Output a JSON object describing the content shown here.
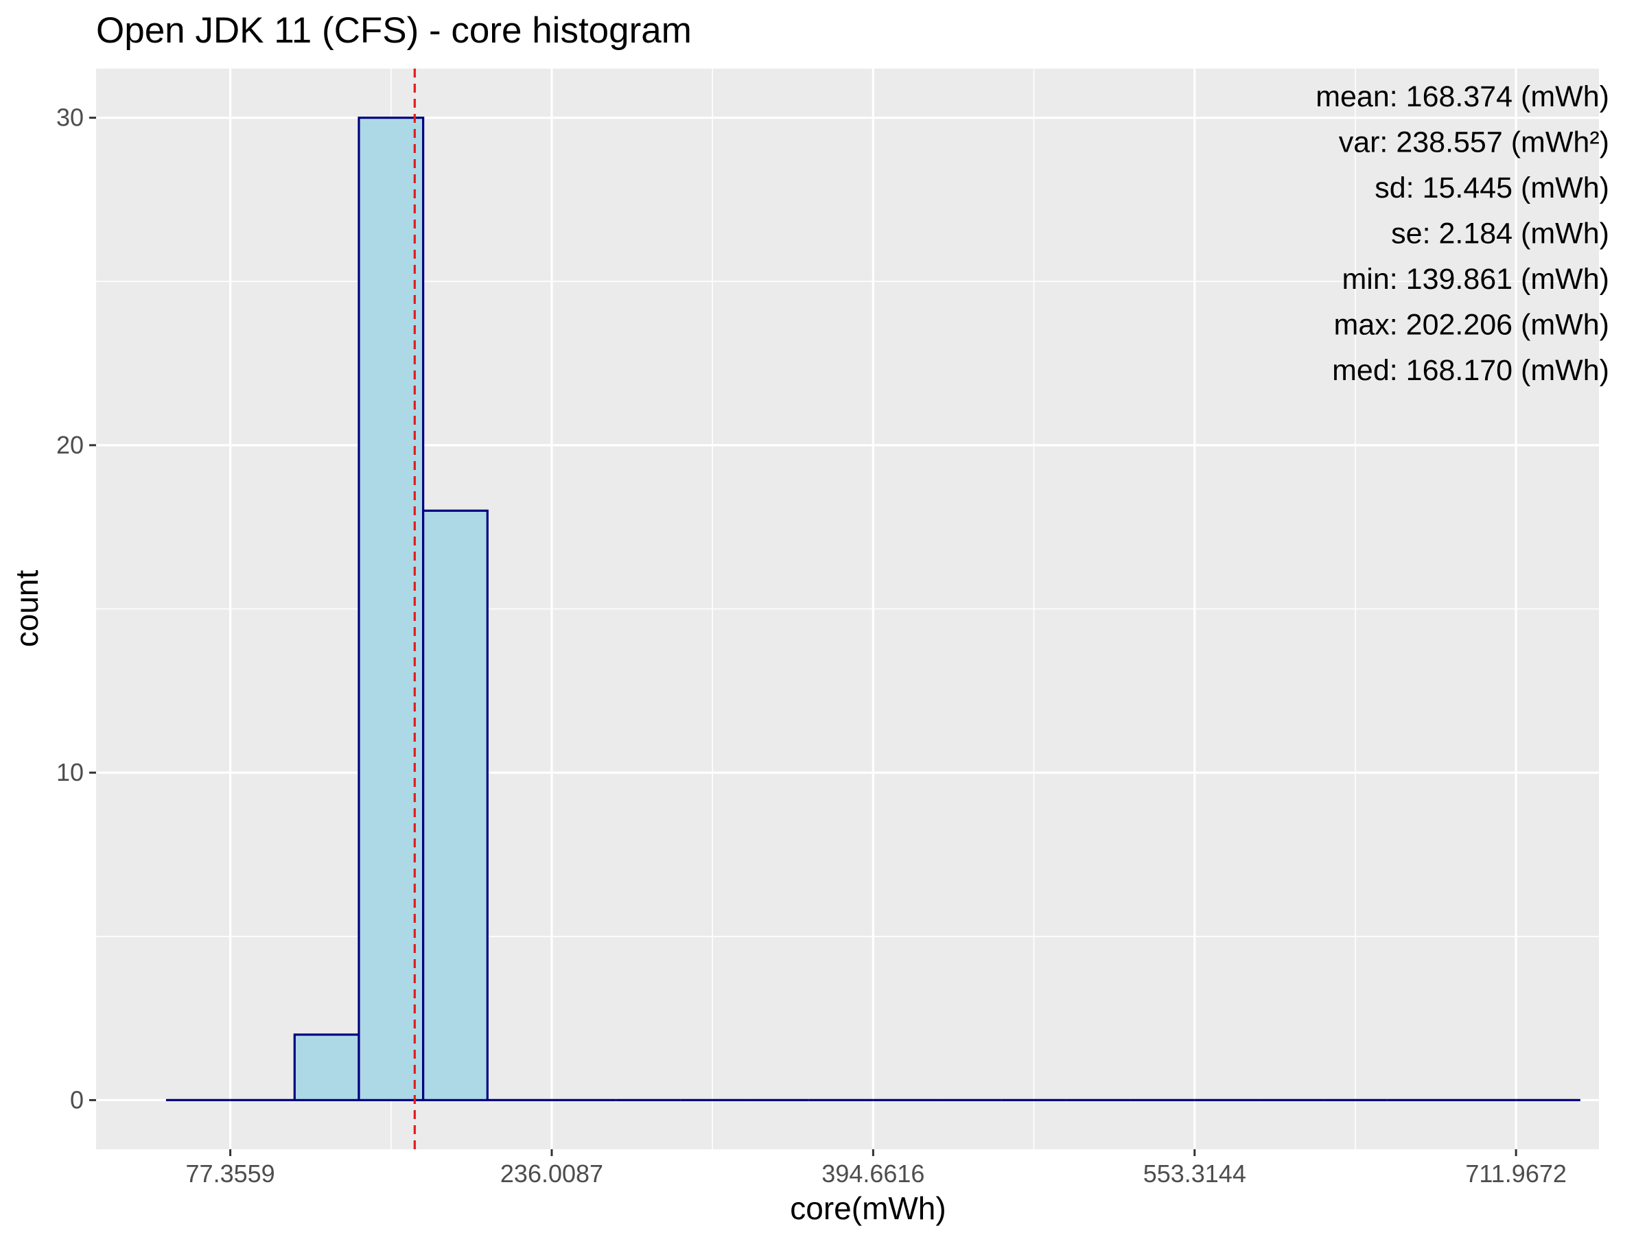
{
  "chart_data": {
    "type": "bar",
    "title": "Open JDK 11 (CFS) - core histogram",
    "xlabel": "core(mWh)",
    "ylabel": "count",
    "xlim": [
      11.1,
      752.9
    ],
    "ylim": [
      -1.5,
      31.5
    ],
    "x_ticks": [
      77.3559,
      236.0087,
      394.6616,
      553.3144,
      711.9672
    ],
    "x_tick_labels": [
      "77.3559",
      "236.0087",
      "394.6616",
      "553.3144",
      "711.9672"
    ],
    "y_ticks": [
      0,
      10,
      20,
      30
    ],
    "y_tick_labels": [
      "0",
      "10",
      "20",
      "30"
    ],
    "bin_width": 31.73,
    "bins": [
      {
        "x_start": 45.63,
        "x_end": 77.36,
        "count": 0
      },
      {
        "x_start": 77.36,
        "x_end": 109.09,
        "count": 0
      },
      {
        "x_start": 109.09,
        "x_end": 140.82,
        "count": 2
      },
      {
        "x_start": 140.82,
        "x_end": 172.55,
        "count": 30
      },
      {
        "x_start": 172.55,
        "x_end": 204.28,
        "count": 18
      },
      {
        "x_start": 204.28,
        "x_end": 236.01,
        "count": 0
      },
      {
        "x_start": 236.01,
        "x_end": 267.74,
        "count": 0
      },
      {
        "x_start": 267.74,
        "x_end": 299.47,
        "count": 0
      },
      {
        "x_start": 299.47,
        "x_end": 331.2,
        "count": 0
      },
      {
        "x_start": 331.2,
        "x_end": 362.93,
        "count": 0
      },
      {
        "x_start": 362.93,
        "x_end": 394.66,
        "count": 0
      },
      {
        "x_start": 394.66,
        "x_end": 426.39,
        "count": 0
      },
      {
        "x_start": 426.39,
        "x_end": 458.12,
        "count": 0
      },
      {
        "x_start": 458.12,
        "x_end": 489.85,
        "count": 0
      },
      {
        "x_start": 489.85,
        "x_end": 521.58,
        "count": 0
      },
      {
        "x_start": 521.58,
        "x_end": 553.31,
        "count": 0
      },
      {
        "x_start": 553.31,
        "x_end": 585.04,
        "count": 0
      },
      {
        "x_start": 585.04,
        "x_end": 616.77,
        "count": 0
      },
      {
        "x_start": 616.77,
        "x_end": 648.51,
        "count": 0
      },
      {
        "x_start": 648.51,
        "x_end": 680.24,
        "count": 0
      },
      {
        "x_start": 680.24,
        "x_end": 711.97,
        "count": 0
      },
      {
        "x_start": 711.97,
        "x_end": 743.7,
        "count": 0
      }
    ],
    "mean_line": {
      "x": 168.374,
      "color": "#e41a1c",
      "style": "dashed"
    },
    "stats_text": [
      "mean: 168.374 (mWh)",
      "var: 238.557 (mWh²)",
      "sd: 15.445 (mWh)",
      "se: 2.184 (mWh)",
      "min: 139.861 (mWh)",
      "max: 202.206 (mWh)",
      "med: 168.170 (mWh)"
    ],
    "stats_placement": "top-right",
    "grid": true,
    "colors": {
      "bar_fill": "#add8e6",
      "bar_outline": "#000080",
      "panel_background": "#ebebeb",
      "grid": "#ffffff"
    }
  }
}
